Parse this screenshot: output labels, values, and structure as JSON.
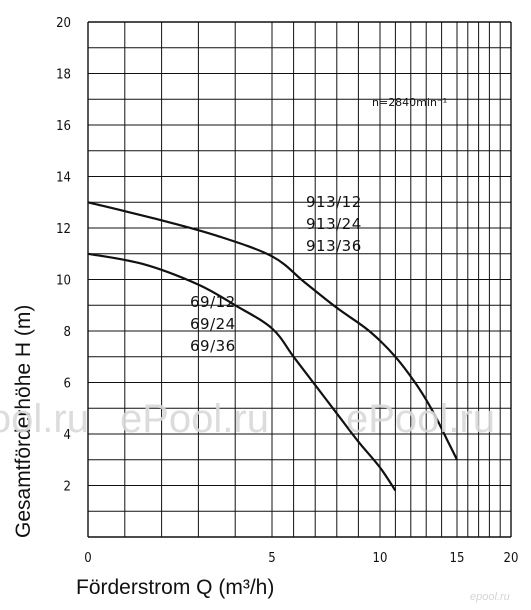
{
  "chart_data": {
    "type": "line",
    "title": "",
    "xlabel": "Förderstrom Q (m³/h)",
    "ylabel": "Gesamtförderhöhe H (m)",
    "xscale": "log-like",
    "xlim": [
      0,
      20
    ],
    "ylim": [
      0,
      20
    ],
    "x_tick_labels": [
      0,
      5,
      10,
      15,
      20
    ],
    "y_tick_labels": [
      2,
      4,
      6,
      8,
      10,
      12,
      14,
      16,
      18,
      20
    ],
    "y_tick_display": [
      "2",
      "4",
      "6",
      "8",
      "10",
      "12",
      "14",
      "16",
      "18",
      "20"
    ],
    "x_tick_display": [
      "0",
      "5",
      "10",
      "15",
      "20"
    ],
    "grid": true,
    "annotation": "n=2840min⁻¹",
    "series": [
      {
        "labels": [
          "913/12",
          "913/24",
          "913/36"
        ],
        "points": [
          [
            0,
            13.0
          ],
          [
            2,
            12.3
          ],
          [
            3.5,
            11.7
          ],
          [
            5,
            10.9
          ],
          [
            6.5,
            9.9
          ],
          [
            8,
            8.9
          ],
          [
            9.5,
            8.0
          ],
          [
            11,
            7.0
          ],
          [
            12.5,
            5.8
          ],
          [
            13.5,
            4.8
          ],
          [
            14.5,
            3.6
          ],
          [
            15,
            3.0
          ]
        ]
      },
      {
        "labels": [
          "69/12",
          "69/24",
          "69/36"
        ],
        "points": [
          [
            0,
            11.0
          ],
          [
            1.5,
            10.6
          ],
          [
            3,
            9.8
          ],
          [
            4,
            9.0
          ],
          [
            5,
            8.1
          ],
          [
            6,
            7.0
          ],
          [
            7,
            5.9
          ],
          [
            8,
            4.8
          ],
          [
            9,
            3.7
          ],
          [
            10,
            2.7
          ],
          [
            11,
            1.8
          ]
        ]
      }
    ]
  },
  "watermarks": [
    "ePool.ru",
    "ePool.ru",
    "ePool.ru",
    "epool.ru"
  ]
}
